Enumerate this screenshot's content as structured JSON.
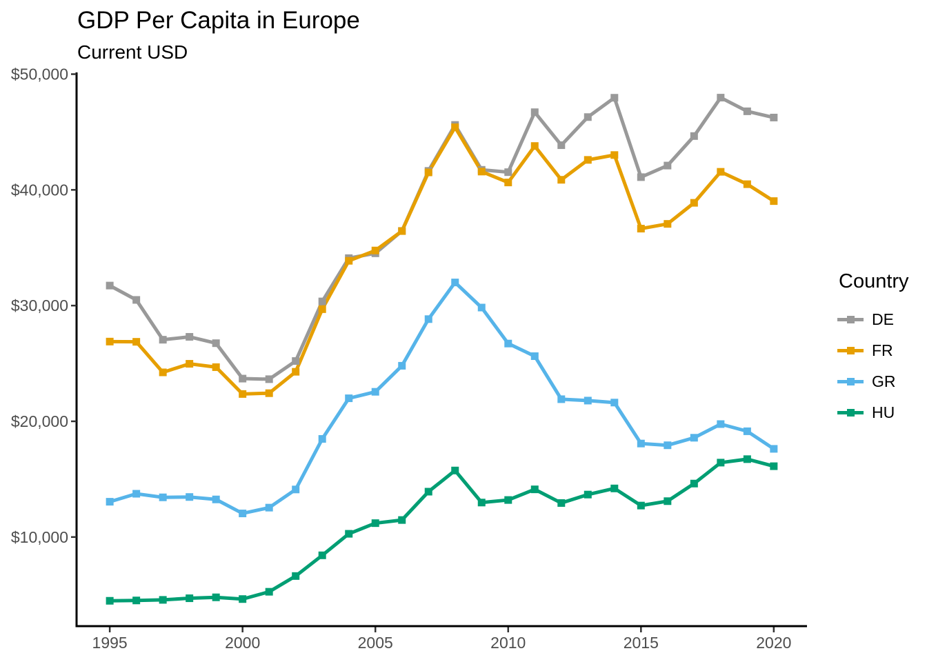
{
  "header": {
    "title": "GDP Per Capita in Europe",
    "subtitle": "Current USD"
  },
  "legend": {
    "title": "Country",
    "items": [
      {
        "label": "DE",
        "color": "#999999"
      },
      {
        "label": "FR",
        "color": "#E69F00"
      },
      {
        "label": "GR",
        "color": "#56B4E9"
      },
      {
        "label": "HU",
        "color": "#009E73"
      }
    ]
  },
  "chart_data": {
    "type": "line",
    "title": "GDP Per Capita in Europe",
    "subtitle": "Current USD",
    "xlabel": "",
    "ylabel": "",
    "x": [
      1995,
      1996,
      1997,
      1998,
      1999,
      2000,
      2001,
      2002,
      2003,
      2004,
      2005,
      2006,
      2007,
      2008,
      2009,
      2010,
      2011,
      2012,
      2013,
      2014,
      2015,
      2016,
      2017,
      2018,
      2019,
      2020
    ],
    "series": [
      {
        "name": "DE",
        "color": "#999999",
        "values": [
          31730,
          30490,
          27050,
          27300,
          26750,
          23690,
          23640,
          25210,
          30360,
          34100,
          34520,
          36450,
          41640,
          45610,
          41730,
          41530,
          46710,
          43860,
          46290,
          47960,
          41100,
          42100,
          44650,
          47970,
          46790,
          46250
        ]
      },
      {
        "name": "FR",
        "color": "#E69F00",
        "values": [
          26890,
          26870,
          24230,
          24970,
          24680,
          22360,
          22430,
          24280,
          29690,
          33870,
          34760,
          36440,
          41510,
          45410,
          41580,
          40640,
          43790,
          40870,
          42590,
          43010,
          36650,
          37060,
          38880,
          41560,
          40490,
          39030
        ]
      },
      {
        "name": "GR",
        "color": "#56B4E9",
        "values": [
          13050,
          13740,
          13430,
          13460,
          13250,
          12040,
          12540,
          14110,
          18480,
          21990,
          22550,
          24800,
          28830,
          32000,
          29830,
          26720,
          25630,
          21910,
          21790,
          21620,
          18080,
          17930,
          18580,
          19760,
          19140,
          17620
        ]
      },
      {
        "name": "HU",
        "color": "#009E73",
        "values": [
          4490,
          4520,
          4570,
          4710,
          4790,
          4640,
          5270,
          6630,
          8420,
          10280,
          11200,
          11470,
          13920,
          15750,
          12980,
          13200,
          14120,
          12940,
          13670,
          14200,
          12720,
          13100,
          14620,
          16430,
          16730,
          16120
        ]
      }
    ],
    "x_ticks": {
      "values": [
        1995,
        2000,
        2005,
        2010,
        2015,
        2020
      ],
      "labels": [
        "1995",
        "2000",
        "2005",
        "2010",
        "2015",
        "2020"
      ]
    },
    "y_ticks": {
      "values": [
        10000,
        20000,
        30000,
        40000,
        50000
      ],
      "labels": [
        "$10,000",
        "$20,000",
        "$30,000",
        "$40,000",
        "$50,000"
      ]
    },
    "xlim": [
      1993.75,
      2021.25
    ],
    "ylim": [
      2300,
      50150
    ],
    "grid": false,
    "legend_position": "right",
    "axis_color": "#000000",
    "tick_color": "#333333",
    "tick_label_color": "#4d4d4d"
  }
}
